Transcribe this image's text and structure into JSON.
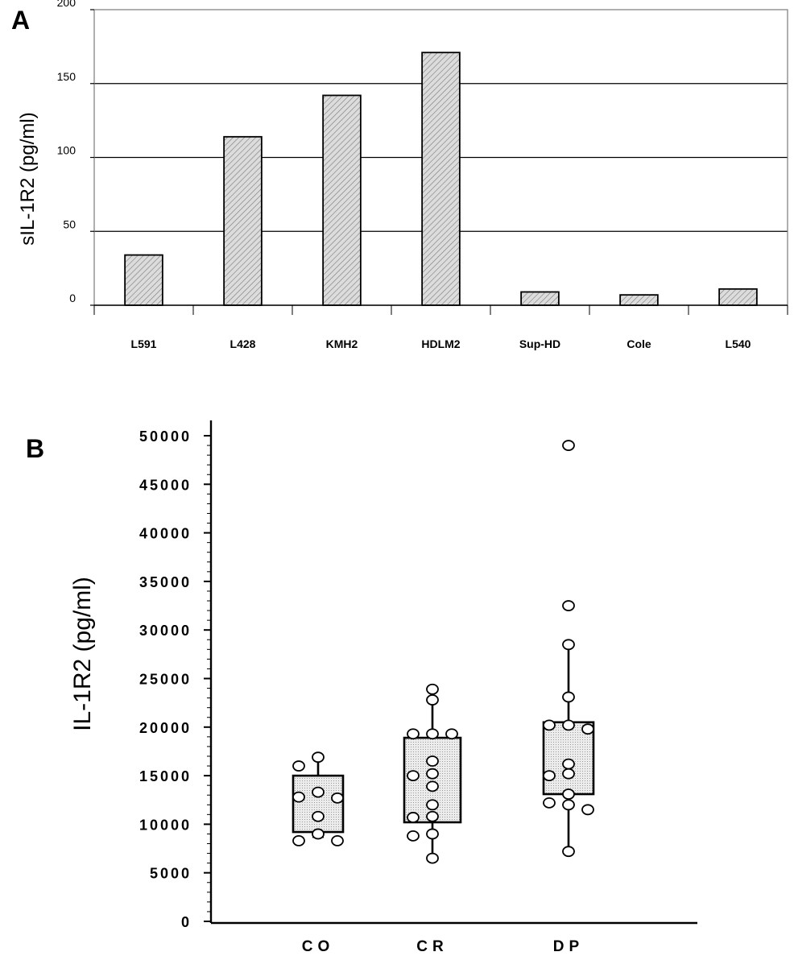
{
  "panels": {
    "a": {
      "letter": "A"
    },
    "b": {
      "letter": "B"
    }
  },
  "chart_data": [
    {
      "type": "bar",
      "title": "",
      "ylabel": "sIL-1R2 (pg/ml)",
      "xlabel": "",
      "ylim": [
        0,
        200
      ],
      "yticks": [
        "0",
        "50",
        "100",
        "150",
        "200"
      ],
      "yticks_values": [
        0,
        50,
        100,
        150,
        200
      ],
      "grid": true,
      "categories": [
        "L591",
        "L428",
        "KMH2",
        "HDLM2",
        "Sup-HD",
        "Cole",
        "L540"
      ],
      "values": [
        34,
        114,
        142,
        171,
        9,
        7,
        11
      ],
      "bar_fill": "#d4d4d4"
    },
    {
      "type": "box",
      "title": "",
      "ylabel": "IL-1R2 (pg/ml)",
      "xlabel": "",
      "ylim": [
        0,
        50000
      ],
      "yticks": [
        "0",
        "5000",
        "10000",
        "15000",
        "20000",
        "25000",
        "30000",
        "35000",
        "40000",
        "45000",
        "50000"
      ],
      "yticks_values": [
        0,
        5000,
        10000,
        15000,
        20000,
        25000,
        30000,
        35000,
        40000,
        45000,
        50000
      ],
      "grid": false,
      "categories": [
        "CO",
        "CR",
        "DP"
      ],
      "boxes": [
        {
          "q1": 9200,
          "q3": 15000,
          "whisker_low": 8700,
          "whisker_high": 16800
        },
        {
          "q1": 10200,
          "q3": 18900,
          "whisker_low": 6500,
          "whisker_high": 23900
        },
        {
          "q1": 13100,
          "q3": 20500,
          "whisker_low": 7200,
          "whisker_high": 28500
        }
      ],
      "points": [
        [
          16900,
          16000,
          13300,
          12800,
          12700,
          10800,
          9000,
          8300,
          8300
        ],
        [
          23900,
          22800,
          19300,
          19300,
          19300,
          16500,
          15200,
          15000,
          13900,
          12000,
          10800,
          10700,
          9000,
          8800,
          6500
        ],
        [
          49000,
          32500,
          28500,
          23100,
          20200,
          20200,
          19800,
          16200,
          15200,
          15000,
          13100,
          12200,
          12000,
          11500,
          7200
        ]
      ],
      "box_fill": "#e4e4e4"
    }
  ]
}
